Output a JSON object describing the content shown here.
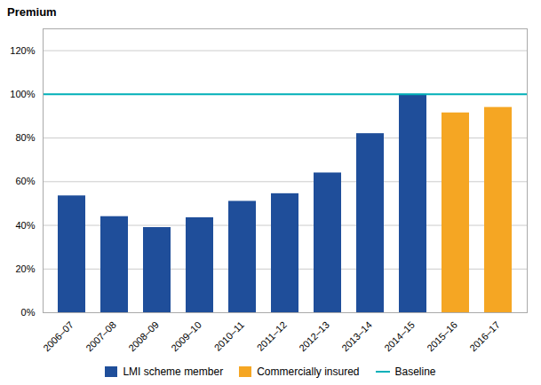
{
  "chart_data": {
    "type": "bar",
    "ylabel": "Premium",
    "categories": [
      "2006–07",
      "2007–08",
      "2008–09",
      "2009–10",
      "2010–11",
      "2011–12",
      "2012–13",
      "2013–14",
      "2014–15",
      "2015–16",
      "2016–17"
    ],
    "series": [
      {
        "name": "LMI scheme member",
        "color": "#1F4E9A",
        "values": [
          53.5,
          44.0,
          39.0,
          43.5,
          51.0,
          54.5,
          64.0,
          82.0,
          100.0,
          null,
          null
        ]
      },
      {
        "name": "Commercially insured",
        "color": "#F5A623",
        "values": [
          null,
          null,
          null,
          null,
          null,
          null,
          null,
          null,
          null,
          91.5,
          94.0
        ]
      }
    ],
    "hlines": [
      {
        "name": "Baseline",
        "value": 100,
        "color": "#00B0B9"
      }
    ],
    "ylim": [
      0,
      130
    ],
    "yticks": [
      {
        "value": 0,
        "label": "0%"
      },
      {
        "value": 20,
        "label": "20%"
      },
      {
        "value": 40,
        "label": "40%"
      },
      {
        "value": 60,
        "label": "60%"
      },
      {
        "value": 80,
        "label": "80%"
      },
      {
        "value": 100,
        "label": "100%"
      },
      {
        "value": 120,
        "label": "120%"
      }
    ],
    "grid": true,
    "legend": "bottom"
  }
}
